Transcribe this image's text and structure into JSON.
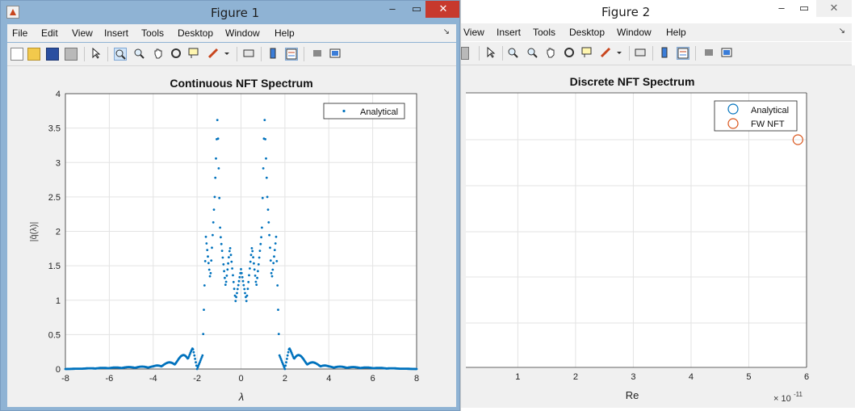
{
  "fig1": {
    "title": "Figure 1",
    "menu": [
      "File",
      "Edit",
      "View",
      "Insert",
      "Tools",
      "Desktop",
      "Window",
      "Help"
    ],
    "minimize": "–",
    "maximize": "▭",
    "close": "✕"
  },
  "fig2": {
    "title": "Figure 2",
    "menu": [
      "View",
      "Insert",
      "Tools",
      "Desktop",
      "Window",
      "Help"
    ],
    "minimize": "–",
    "maximize": "▭",
    "close": "✕"
  },
  "dock_glyph": "↘",
  "toolbar_icons": [
    "new-figure-icon",
    "open-file-icon",
    "save-icon",
    "print-icon",
    "edit-plot-icon",
    "zoom-in-icon",
    "zoom-out-icon",
    "pan-icon",
    "rotate-3d-icon",
    "data-cursor-icon",
    "brush-icon",
    "brush-dropdown-icon",
    "link-plot-icon",
    "colorbar-icon",
    "legend-icon",
    "hide-plot-tools-icon",
    "show-plot-tools-icon"
  ],
  "colors": {
    "series_blue": "#0072bd",
    "series_orange": "#d95319"
  },
  "chart_data": [
    {
      "type": "scatter",
      "title": "Continuous NFT Spectrum",
      "xlabel": "λ",
      "ylabel": "|q̂(λ)|",
      "xlim": [
        -8,
        8
      ],
      "ylim": [
        0,
        4
      ],
      "xticks": [
        "-8",
        "-6",
        "-4",
        "-2",
        "0",
        "2",
        "4",
        "6",
        "8"
      ],
      "yticks": [
        "0",
        "0.5",
        "1",
        "1.5",
        "2",
        "2.5",
        "3",
        "3.5",
        "4"
      ],
      "grid": true,
      "legend_position": "top-right",
      "series": [
        {
          "name": "Analytical"
        }
      ],
      "envelope": [
        {
          "x": -8.0,
          "y": 0.0
        },
        {
          "x": -6.0,
          "y": 0.02
        },
        {
          "x": -4.0,
          "y": 0.04
        },
        {
          "x": -3.0,
          "y": 0.12
        },
        {
          "x": -2.2,
          "y": 0.32
        },
        {
          "x": -2.0,
          "y": 0.0
        },
        {
          "x": -1.75,
          "y": 0.2
        },
        {
          "x": -1.6,
          "y": 1.92
        },
        {
          "x": -1.4,
          "y": 1.3
        },
        {
          "x": -1.2,
          "y": 2.5
        },
        {
          "x": -1.07,
          "y": 3.68
        },
        {
          "x": -0.95,
          "y": 2.0
        },
        {
          "x": -0.7,
          "y": 1.2
        },
        {
          "x": -0.5,
          "y": 1.78
        },
        {
          "x": -0.25,
          "y": 0.98
        },
        {
          "x": 0.0,
          "y": 1.45
        },
        {
          "x": 0.25,
          "y": 0.98
        },
        {
          "x": 0.5,
          "y": 1.78
        },
        {
          "x": 0.7,
          "y": 1.2
        },
        {
          "x": 0.95,
          "y": 2.0
        },
        {
          "x": 1.07,
          "y": 3.68
        },
        {
          "x": 1.2,
          "y": 2.5
        },
        {
          "x": 1.4,
          "y": 1.3
        },
        {
          "x": 1.6,
          "y": 1.92
        },
        {
          "x": 1.75,
          "y": 0.2
        },
        {
          "x": 2.0,
          "y": 0.0
        },
        {
          "x": 2.2,
          "y": 0.32
        },
        {
          "x": 3.0,
          "y": 0.12
        },
        {
          "x": 4.0,
          "y": 0.04
        },
        {
          "x": 6.0,
          "y": 0.02
        },
        {
          "x": 8.0,
          "y": 0.0
        }
      ]
    },
    {
      "type": "scatter",
      "title": "Discrete NFT Spectrum",
      "xlabel": "Re",
      "xticks": [
        "1",
        "2",
        "3",
        "4",
        "5",
        "6"
      ],
      "x_exponent": "× 10^-11",
      "grid": true,
      "legend_position": "top-right",
      "series": [
        {
          "name": "Analytical",
          "points": []
        },
        {
          "name": "FW NFT",
          "points": [
            {
              "x": 5.85e-11,
              "y": null
            }
          ]
        }
      ]
    }
  ]
}
